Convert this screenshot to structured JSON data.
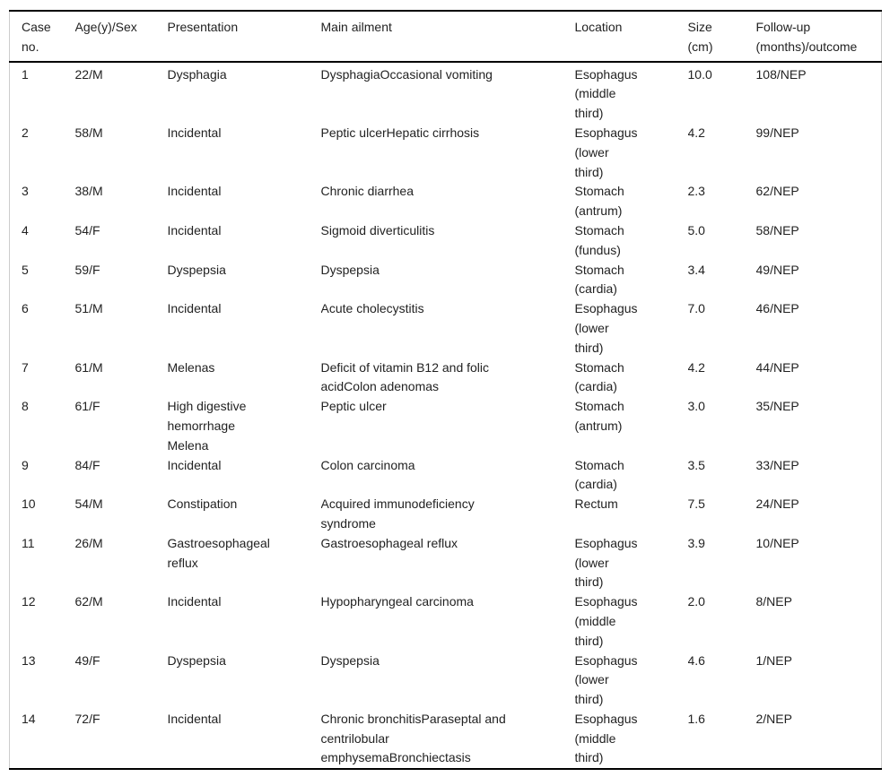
{
  "table": {
    "columns": [
      {
        "key": "case_no",
        "label": "Case\nno."
      },
      {
        "key": "age_sex",
        "label": "Age(y)/Sex"
      },
      {
        "key": "presentation",
        "label": "Presentation"
      },
      {
        "key": "main_ailment",
        "label": "Main ailment"
      },
      {
        "key": "location",
        "label": "Location"
      },
      {
        "key": "size_cm",
        "label": "Size\n(cm)"
      },
      {
        "key": "follow_up",
        "label": "Follow-up\n(months)/outcome"
      }
    ],
    "rows": [
      {
        "case_no": "1",
        "age_sex": "22/M",
        "presentation": "Dysphagia",
        "main_ailment": "DysphagiaOccasional vomiting",
        "location": "Esophagus\n(middle\nthird)",
        "size_cm": "10.0",
        "follow_up": "108/NEP"
      },
      {
        "case_no": "2",
        "age_sex": "58/M",
        "presentation": "Incidental",
        "main_ailment": "Peptic ulcerHepatic cirrhosis",
        "location": "Esophagus\n(lower\nthird)",
        "size_cm": "4.2",
        "follow_up": "99/NEP"
      },
      {
        "case_no": "3",
        "age_sex": "38/M",
        "presentation": "Incidental",
        "main_ailment": "Chronic diarrhea",
        "location": "Stomach\n(antrum)",
        "size_cm": "2.3",
        "follow_up": "62/NEP"
      },
      {
        "case_no": "4",
        "age_sex": "54/F",
        "presentation": "Incidental",
        "main_ailment": "Sigmoid diverticulitis",
        "location": "Stomach\n(fundus)",
        "size_cm": "5.0",
        "follow_up": "58/NEP"
      },
      {
        "case_no": "5",
        "age_sex": "59/F",
        "presentation": "Dyspepsia",
        "main_ailment": "Dyspepsia",
        "location": "Stomach\n(cardia)",
        "size_cm": "3.4",
        "follow_up": "49/NEP"
      },
      {
        "case_no": "6",
        "age_sex": "51/M",
        "presentation": "Incidental",
        "main_ailment": "Acute cholecystitis",
        "location": "Esophagus\n(lower\nthird)",
        "size_cm": "7.0",
        "follow_up": "46/NEP"
      },
      {
        "case_no": "7",
        "age_sex": "61/M",
        "presentation": "Melenas",
        "main_ailment": "Deficit of vitamin B12 and folic\nacidColon adenomas",
        "location": "Stomach\n(cardia)",
        "size_cm": "4.2",
        "follow_up": "44/NEP"
      },
      {
        "case_no": "8",
        "age_sex": "61/F",
        "presentation": "High digestive\nhemorrhage\nMelena",
        "main_ailment": "Peptic ulcer",
        "location": "Stomach\n(antrum)",
        "size_cm": "3.0",
        "follow_up": "35/NEP"
      },
      {
        "case_no": "9",
        "age_sex": "84/F",
        "presentation": "Incidental",
        "main_ailment": "Colon carcinoma",
        "location": "Stomach\n(cardia)",
        "size_cm": "3.5",
        "follow_up": "33/NEP"
      },
      {
        "case_no": "10",
        "age_sex": "54/M",
        "presentation": "Constipation",
        "main_ailment": "Acquired immunodeficiency\nsyndrome",
        "location": "Rectum",
        "size_cm": "7.5",
        "follow_up": "24/NEP"
      },
      {
        "case_no": "11",
        "age_sex": "26/M",
        "presentation": "Gastroesophageal\nreflux",
        "main_ailment": "Gastroesophageal reflux",
        "location": "Esophagus\n(lower\nthird)",
        "size_cm": "3.9",
        "follow_up": "10/NEP"
      },
      {
        "case_no": "12",
        "age_sex": "62/M",
        "presentation": "Incidental",
        "main_ailment": "Hypopharyngeal carcinoma",
        "location": "Esophagus\n(middle\nthird)",
        "size_cm": "2.0",
        "follow_up": "8/NEP"
      },
      {
        "case_no": "13",
        "age_sex": "49/F",
        "presentation": "Dyspepsia",
        "main_ailment": "Dyspepsia",
        "location": "Esophagus\n(lower\nthird)",
        "size_cm": "4.6",
        "follow_up": "1/NEP"
      },
      {
        "case_no": "14",
        "age_sex": "72/F",
        "presentation": "Incidental",
        "main_ailment": "Chronic bronchitisParaseptal and\ncentrilobular\nemphysemaBronchiectasis",
        "location": "Esophagus\n(middle\nthird)",
        "size_cm": "1.6",
        "follow_up": "2/NEP"
      }
    ]
  }
}
